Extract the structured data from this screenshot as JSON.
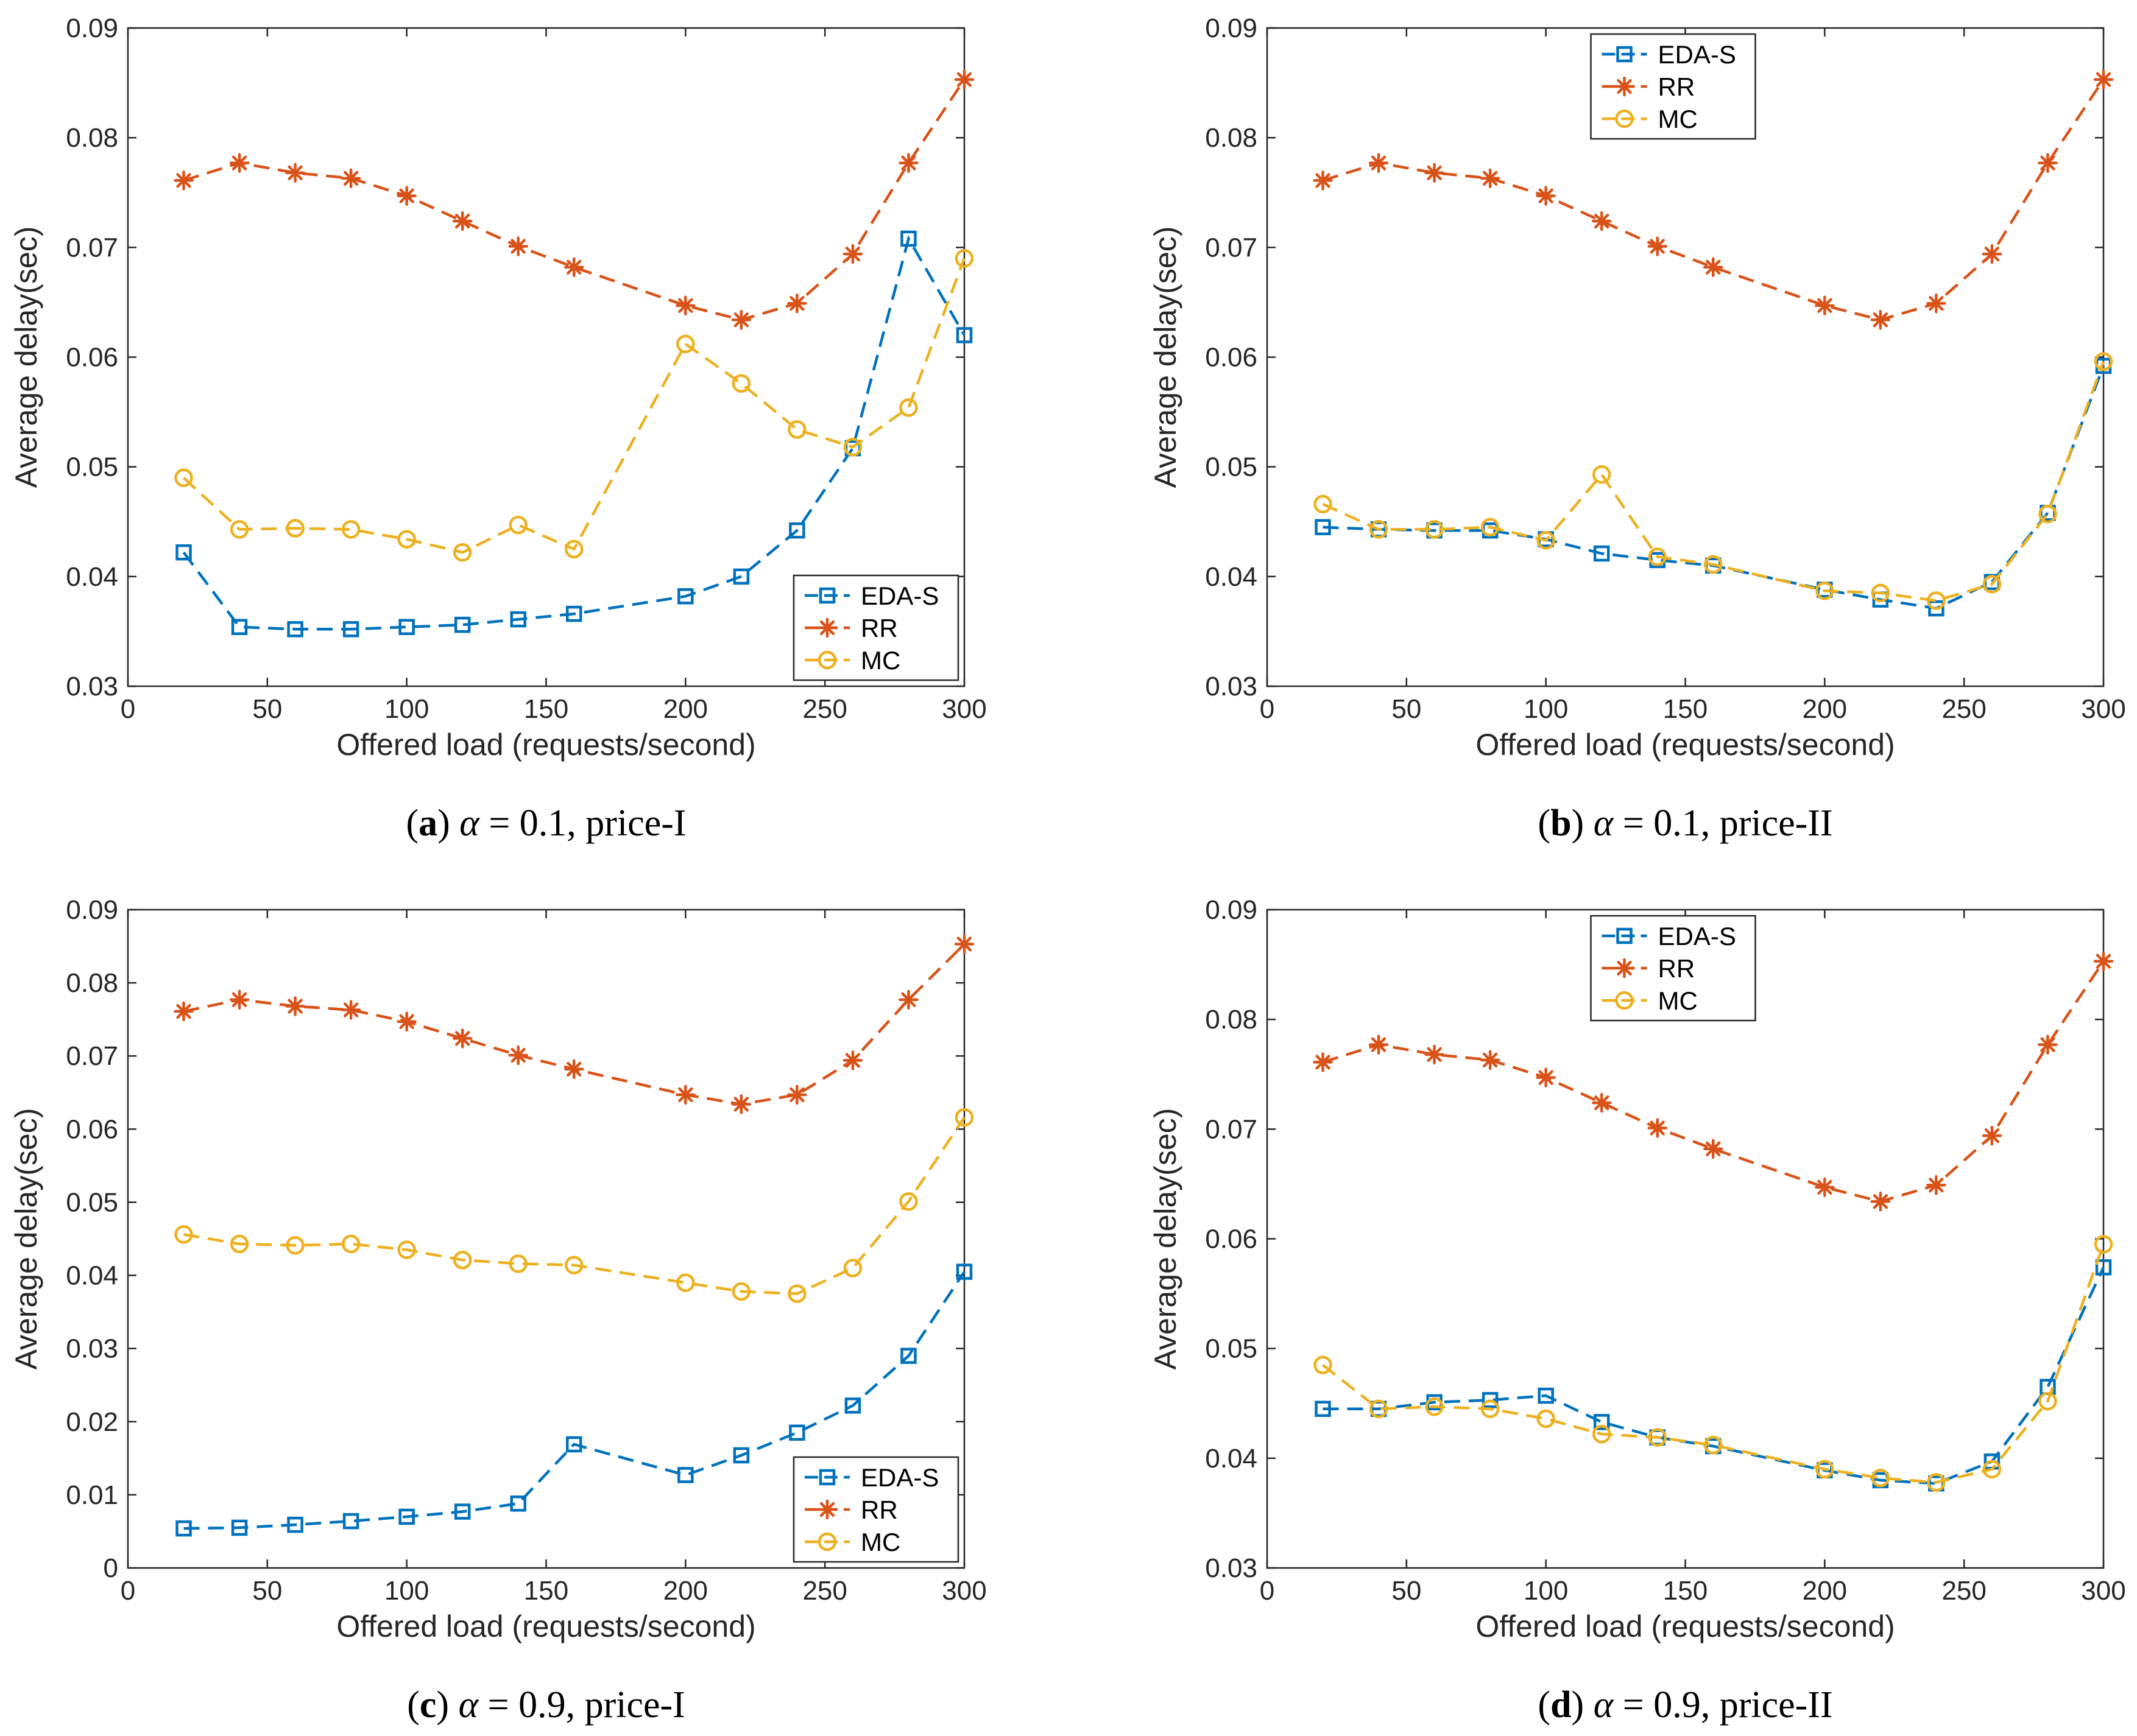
{
  "figure": {
    "legend_labels": [
      "EDA-S",
      "RR",
      "MC"
    ],
    "colors": {
      "EDA-S": "#0072BD",
      "RR": "#D95319",
      "MC": "#EDB120",
      "axes": "#262626"
    }
  },
  "chart_data": [
    {
      "type": "line",
      "panel": "a",
      "caption": {
        "label": "a",
        "alpha_symbol": "α",
        "rest": " = 0.1, price-I"
      },
      "xlabel": "Offered load (requests/second)",
      "ylabel": "Average delay(sec)",
      "xlim": [
        0,
        300
      ],
      "ylim": [
        0.03,
        0.09
      ],
      "xticks": [
        0,
        50,
        100,
        150,
        200,
        250,
        300
      ],
      "yticks": [
        0.03,
        0.04,
        0.05,
        0.06,
        0.07,
        0.08,
        0.09
      ],
      "ytick_labels": [
        "0.03",
        "0.04",
        "0.05",
        "0.06",
        "0.07",
        "0.08",
        "0.09"
      ],
      "legend_position": "bottom-right",
      "series": [
        {
          "name": "EDA-S",
          "marker": "square",
          "x": [
            20,
            40,
            60,
            80,
            100,
            120,
            140,
            160,
            200,
            220,
            240,
            260,
            280,
            300
          ],
          "y": [
            0.0422,
            0.0354,
            0.0352,
            0.0352,
            0.0354,
            0.0356,
            0.0361,
            0.0366,
            0.0382,
            0.04,
            0.0442,
            0.0517,
            0.0708,
            0.062
          ]
        },
        {
          "name": "RR",
          "marker": "star",
          "x": [
            20,
            40,
            60,
            80,
            100,
            120,
            140,
            160,
            200,
            220,
            240,
            260,
            280,
            300
          ],
          "y": [
            0.0761,
            0.0777,
            0.0768,
            0.0763,
            0.0747,
            0.0724,
            0.0701,
            0.0682,
            0.0647,
            0.0634,
            0.0649,
            0.0694,
            0.0777,
            0.0853
          ]
        },
        {
          "name": "MC",
          "marker": "circle",
          "x": [
            20,
            40,
            60,
            80,
            100,
            120,
            140,
            160,
            200,
            220,
            240,
            260,
            280,
            300
          ],
          "y": [
            0.049,
            0.0443,
            0.0444,
            0.0443,
            0.0434,
            0.0422,
            0.0447,
            0.0425,
            0.0612,
            0.0576,
            0.0534,
            0.0518,
            0.0554,
            0.069
          ]
        }
      ]
    },
    {
      "type": "line",
      "panel": "b",
      "caption": {
        "label": "b",
        "alpha_symbol": "α",
        "rest": " = 0.1, price-II"
      },
      "xlabel": "Offered load (requests/second)",
      "ylabel": "Average delay(sec)",
      "xlim": [
        0,
        300
      ],
      "ylim": [
        0.03,
        0.09
      ],
      "xticks": [
        0,
        50,
        100,
        150,
        200,
        250,
        300
      ],
      "yticks": [
        0.03,
        0.04,
        0.05,
        0.06,
        0.07,
        0.08,
        0.09
      ],
      "ytick_labels": [
        "0.03",
        "0.04",
        "0.05",
        "0.06",
        "0.07",
        "0.08",
        "0.09"
      ],
      "legend_position": "top-center",
      "series": [
        {
          "name": "EDA-S",
          "marker": "square",
          "x": [
            20,
            40,
            60,
            80,
            100,
            120,
            140,
            160,
            200,
            220,
            240,
            260,
            280,
            300
          ],
          "y": [
            0.0445,
            0.0443,
            0.0442,
            0.0442,
            0.0434,
            0.0421,
            0.0415,
            0.041,
            0.0388,
            0.0379,
            0.0371,
            0.0395,
            0.0458,
            0.0592
          ]
        },
        {
          "name": "RR",
          "marker": "star",
          "x": [
            20,
            40,
            60,
            80,
            100,
            120,
            140,
            160,
            200,
            220,
            240,
            260,
            280,
            300
          ],
          "y": [
            0.0761,
            0.0777,
            0.0768,
            0.0763,
            0.0747,
            0.0724,
            0.0701,
            0.0682,
            0.0647,
            0.0634,
            0.0649,
            0.0694,
            0.0777,
            0.0853
          ]
        },
        {
          "name": "MC",
          "marker": "circle",
          "x": [
            20,
            40,
            60,
            80,
            100,
            120,
            140,
            160,
            200,
            220,
            240,
            260,
            280,
            300
          ],
          "y": [
            0.0466,
            0.0443,
            0.0443,
            0.0445,
            0.0433,
            0.0493,
            0.0418,
            0.0411,
            0.0387,
            0.0385,
            0.0378,
            0.0393,
            0.0457,
            0.0596
          ]
        }
      ]
    },
    {
      "type": "line",
      "panel": "c",
      "caption": {
        "label": "c",
        "alpha_symbol": "α",
        "rest": " = 0.9, price-I"
      },
      "xlabel": "Offered load (requests/second)",
      "ylabel": "Average delay(sec)",
      "xlim": [
        0,
        300
      ],
      "ylim": [
        0,
        0.09
      ],
      "xticks": [
        0,
        50,
        100,
        150,
        200,
        250,
        300
      ],
      "yticks": [
        0,
        0.01,
        0.02,
        0.03,
        0.04,
        0.05,
        0.06,
        0.07,
        0.08,
        0.09
      ],
      "ytick_labels": [
        "0",
        "0.01",
        "0.02",
        "0.03",
        "0.04",
        "0.05",
        "0.06",
        "0.07",
        "0.08",
        "0.09"
      ],
      "legend_position": "bottom-right",
      "series": [
        {
          "name": "EDA-S",
          "marker": "square",
          "x": [
            20,
            40,
            60,
            80,
            100,
            120,
            140,
            160,
            200,
            220,
            240,
            260,
            280,
            300
          ],
          "y": [
            0.0054,
            0.0055,
            0.0059,
            0.0064,
            0.007,
            0.0077,
            0.0088,
            0.0169,
            0.0127,
            0.0154,
            0.0185,
            0.0222,
            0.029,
            0.0405
          ]
        },
        {
          "name": "RR",
          "marker": "star",
          "x": [
            20,
            40,
            60,
            80,
            100,
            120,
            140,
            160,
            200,
            220,
            240,
            260,
            280,
            300
          ],
          "y": [
            0.0761,
            0.0777,
            0.0768,
            0.0763,
            0.0747,
            0.0724,
            0.0701,
            0.0682,
            0.0647,
            0.0634,
            0.0647,
            0.0694,
            0.0777,
            0.0853
          ]
        },
        {
          "name": "MC",
          "marker": "circle",
          "x": [
            20,
            40,
            60,
            80,
            100,
            120,
            140,
            160,
            200,
            220,
            240,
            260,
            280,
            300
          ],
          "y": [
            0.0456,
            0.0443,
            0.0441,
            0.0443,
            0.0435,
            0.0421,
            0.0416,
            0.0414,
            0.039,
            0.0378,
            0.0375,
            0.041,
            0.0501,
            0.0616
          ]
        }
      ]
    },
    {
      "type": "line",
      "panel": "d",
      "caption": {
        "label": "d",
        "alpha_symbol": "α",
        "rest": " = 0.9, price-II"
      },
      "xlabel": "Offered load (requests/second)",
      "ylabel": "Average delay(sec)",
      "xlim": [
        0,
        300
      ],
      "ylim": [
        0.03,
        0.09
      ],
      "xticks": [
        0,
        50,
        100,
        150,
        200,
        250,
        300
      ],
      "yticks": [
        0.03,
        0.04,
        0.05,
        0.06,
        0.07,
        0.08,
        0.09
      ],
      "ytick_labels": [
        "0.03",
        "0.04",
        "0.05",
        "0.06",
        "0.07",
        "0.08",
        "0.09"
      ],
      "legend_position": "top-center",
      "series": [
        {
          "name": "EDA-S",
          "marker": "square",
          "x": [
            20,
            40,
            60,
            80,
            100,
            120,
            140,
            160,
            200,
            220,
            240,
            260,
            280,
            300
          ],
          "y": [
            0.0445,
            0.0445,
            0.0451,
            0.0453,
            0.0457,
            0.0433,
            0.0419,
            0.0411,
            0.0389,
            0.038,
            0.0377,
            0.0397,
            0.0465,
            0.0574
          ]
        },
        {
          "name": "RR",
          "marker": "star",
          "x": [
            20,
            40,
            60,
            80,
            100,
            120,
            140,
            160,
            200,
            220,
            240,
            260,
            280,
            300
          ],
          "y": [
            0.0761,
            0.0777,
            0.0768,
            0.0763,
            0.0747,
            0.0724,
            0.0701,
            0.0682,
            0.0647,
            0.0634,
            0.0649,
            0.0694,
            0.0777,
            0.0853
          ]
        },
        {
          "name": "MC",
          "marker": "circle",
          "x": [
            20,
            40,
            60,
            80,
            100,
            120,
            140,
            160,
            200,
            220,
            240,
            260,
            280,
            300
          ],
          "y": [
            0.0485,
            0.0445,
            0.0447,
            0.0445,
            0.0436,
            0.0422,
            0.0419,
            0.0412,
            0.039,
            0.0382,
            0.0378,
            0.039,
            0.0452,
            0.0595
          ]
        }
      ]
    }
  ]
}
